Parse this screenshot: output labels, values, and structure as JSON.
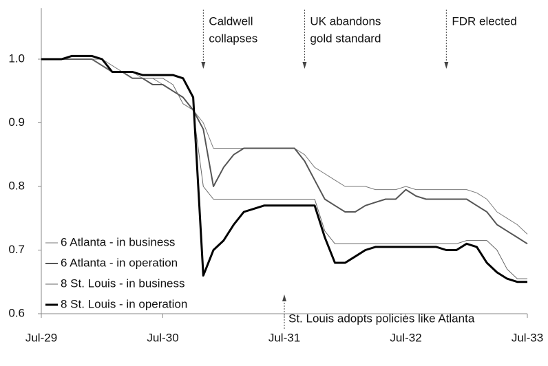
{
  "chart_data": {
    "type": "line",
    "x": [
      "Jul-29",
      "Aug-29",
      "Sep-29",
      "Oct-29",
      "Nov-29",
      "Dec-29",
      "Jan-30",
      "Feb-30",
      "Mar-30",
      "Apr-30",
      "May-30",
      "Jun-30",
      "Jul-30",
      "Aug-30",
      "Sep-30",
      "Oct-30",
      "Nov-30",
      "Dec-30",
      "Jan-31",
      "Feb-31",
      "Mar-31",
      "Apr-31",
      "May-31",
      "Jun-31",
      "Jul-31",
      "Aug-31",
      "Sep-31",
      "Oct-31",
      "Nov-31",
      "Dec-31",
      "Jan-32",
      "Feb-32",
      "Mar-32",
      "Apr-32",
      "May-32",
      "Jun-32",
      "Jul-32",
      "Aug-32",
      "Sep-32",
      "Oct-32",
      "Nov-32",
      "Dec-32",
      "Jan-33",
      "Feb-33",
      "Mar-33",
      "Apr-33",
      "May-33",
      "Jun-33",
      "Jul-33"
    ],
    "xticks": [
      "Jul-29",
      "Jul-30",
      "Jul-31",
      "Jul-32",
      "Jul-33"
    ],
    "ylim": [
      0.6,
      1.08
    ],
    "yticks": [
      0.6,
      0.7,
      0.8,
      0.9,
      {
        "value": 1,
        "label": "1.0"
      }
    ],
    "series": [
      {
        "name": "6 Atlanta - in business",
        "color": "#7a7a7a",
        "line_width": 1,
        "values": [
          1,
          1,
          1,
          1,
          1,
          1,
          1,
          0.99,
          0.98,
          0.98,
          0.97,
          0.97,
          0.96,
          0.95,
          0.94,
          0.92,
          0.9,
          0.86,
          0.86,
          0.86,
          0.86,
          0.86,
          0.86,
          0.86,
          0.86,
          0.86,
          0.85,
          0.83,
          0.82,
          0.81,
          0.8,
          0.8,
          0.8,
          0.795,
          0.795,
          0.795,
          0.8,
          0.795,
          0.795,
          0.795,
          0.795,
          0.795,
          0.795,
          0.79,
          0.78,
          0.76,
          0.75,
          0.74,
          0.725
        ]
      },
      {
        "name": "6 Atlanta - in operation",
        "color": "#555555",
        "line_width": 2,
        "values": [
          1,
          1,
          1,
          1,
          1,
          1,
          0.99,
          0.98,
          0.98,
          0.97,
          0.97,
          0.96,
          0.96,
          0.95,
          0.94,
          0.92,
          0.89,
          0.8,
          0.83,
          0.85,
          0.86,
          0.86,
          0.86,
          0.86,
          0.86,
          0.86,
          0.84,
          0.81,
          0.78,
          0.77,
          0.76,
          0.76,
          0.77,
          0.775,
          0.78,
          0.78,
          0.795,
          0.785,
          0.78,
          0.78,
          0.78,
          0.78,
          0.78,
          0.77,
          0.76,
          0.74,
          0.73,
          0.72,
          0.71
        ]
      },
      {
        "name": "8 St. Louis - in business",
        "color": "#666666",
        "line_width": 1,
        "values": [
          1,
          1,
          1,
          1,
          1,
          1,
          0.99,
          0.98,
          0.98,
          0.97,
          0.97,
          0.97,
          0.97,
          0.96,
          0.93,
          0.92,
          0.8,
          0.78,
          0.78,
          0.78,
          0.78,
          0.78,
          0.78,
          0.78,
          0.78,
          0.78,
          0.78,
          0.78,
          0.73,
          0.71,
          0.71,
          0.71,
          0.71,
          0.71,
          0.71,
          0.71,
          0.71,
          0.71,
          0.71,
          0.71,
          0.71,
          0.71,
          0.715,
          0.715,
          0.715,
          0.7,
          0.67,
          0.655,
          0.655
        ]
      },
      {
        "name": "8 St. Louis - in operation",
        "color": "#000000",
        "line_width": 3,
        "values": [
          1,
          1,
          1,
          1.005,
          1.005,
          1.005,
          1,
          0.98,
          0.98,
          0.98,
          0.975,
          0.975,
          0.975,
          0.975,
          0.97,
          0.94,
          0.66,
          0.7,
          0.715,
          0.74,
          0.76,
          0.765,
          0.77,
          0.77,
          0.77,
          0.77,
          0.77,
          0.77,
          0.72,
          0.68,
          0.68,
          0.69,
          0.7,
          0.705,
          0.705,
          0.705,
          0.705,
          0.705,
          0.705,
          0.705,
          0.7,
          0.7,
          0.71,
          0.705,
          0.68,
          0.665,
          0.655,
          0.65,
          0.65
        ]
      }
    ],
    "annotations": [
      {
        "lines": [
          "Caldwell",
          "collapses"
        ],
        "x": "Nov-30",
        "arrow": "down"
      },
      {
        "lines": [
          "UK abandons",
          "gold standard"
        ],
        "x": "Sep-31",
        "arrow": "down"
      },
      {
        "lines": [
          "FDR elected"
        ],
        "x": "Nov-32",
        "arrow": "down"
      },
      {
        "lines": [
          "St. Louis adopts policies like Atlanta"
        ],
        "x": "Jul-31",
        "arrow": "up"
      }
    ]
  }
}
